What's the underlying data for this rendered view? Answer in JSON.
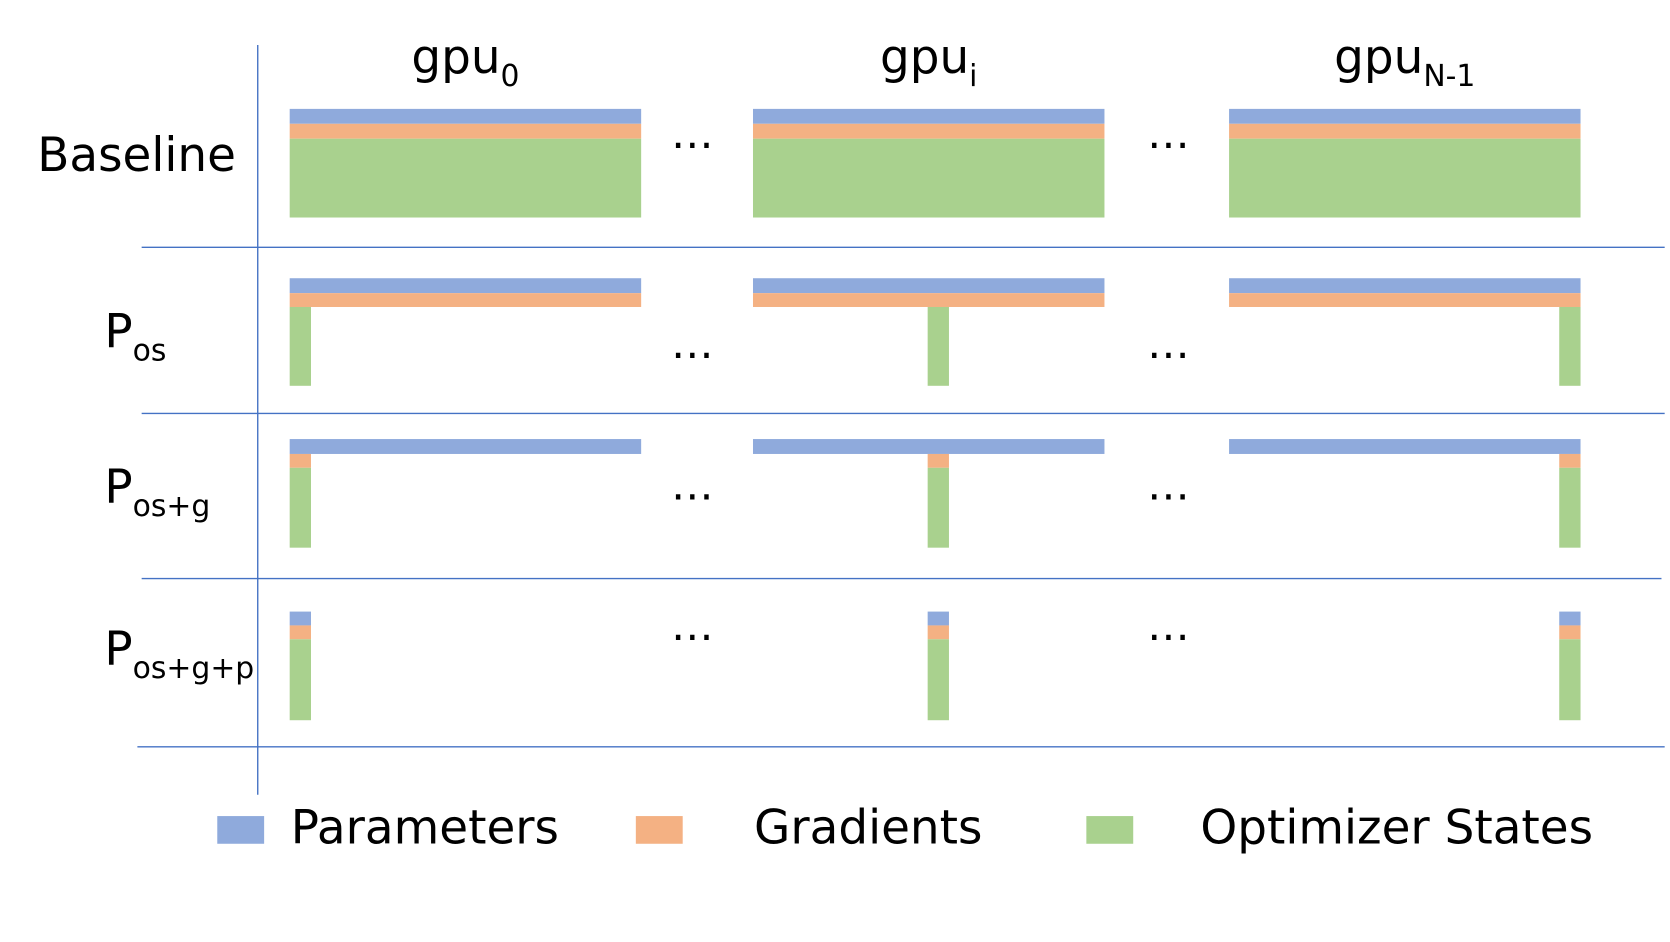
{
  "columns": [
    {
      "base": "gpu",
      "sub": "0"
    },
    {
      "base": "gpu",
      "sub": "i"
    },
    {
      "base": "gpu",
      "sub": "N-1"
    }
  ],
  "rows": [
    {
      "base": "Baseline"
    },
    {
      "base": "P",
      "sub": "os"
    },
    {
      "base": "P",
      "sub": "os+g"
    },
    {
      "base": "P",
      "sub": "os+g+p"
    }
  ],
  "ellipsis": "…",
  "legend": [
    {
      "label": "Parameters",
      "color": "#8faadc"
    },
    {
      "label": "Gradients",
      "color": "#f4b183"
    },
    {
      "label": "Optimizer States",
      "color": "#a9d18e"
    }
  ]
}
